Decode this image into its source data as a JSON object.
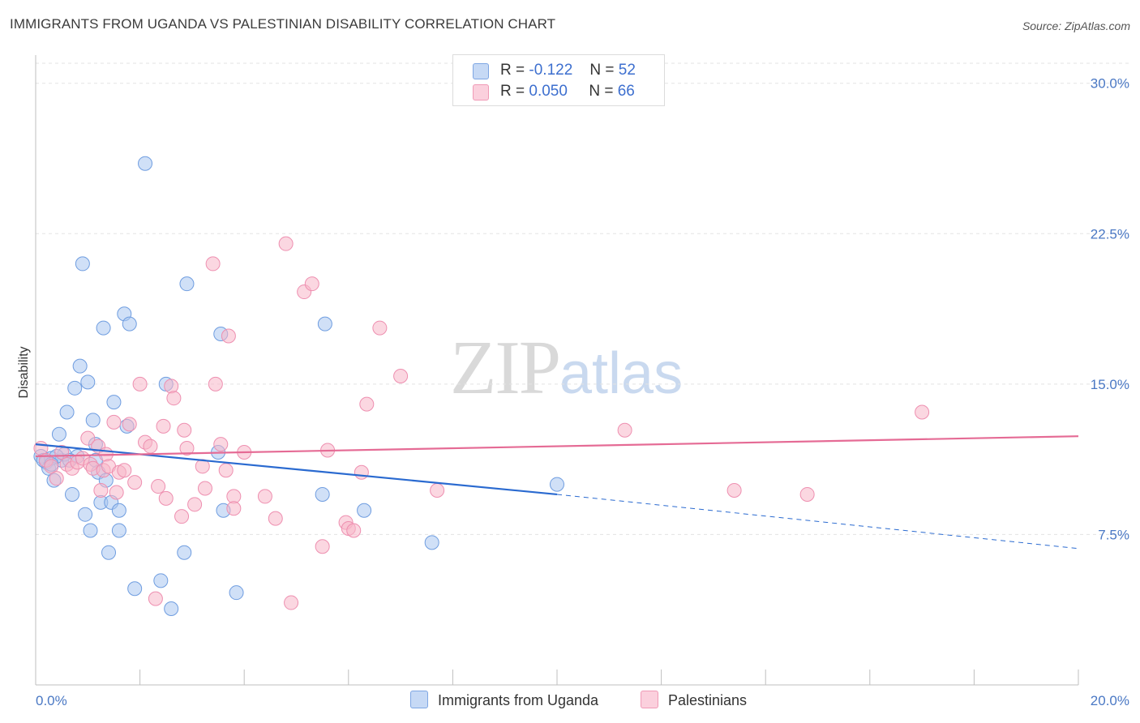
{
  "title": "IMMIGRANTS FROM UGANDA VS PALESTINIAN DISABILITY CORRELATION CHART",
  "source": "Source: ZipAtlas.com",
  "watermark": {
    "zip": "ZIP",
    "atlas": "atlas"
  },
  "legend": {
    "r_label": "R =",
    "n_label": "N =",
    "series": [
      {
        "r": "-0.122",
        "n": "52",
        "color": "#a9c6f0"
      },
      {
        "r": "0.050",
        "n": "66",
        "color": "#f7b6c9"
      }
    ]
  },
  "bottom_legend": [
    {
      "label": "Immigrants from Uganda",
      "color": "#a9c6f0"
    },
    {
      "label": "Palestinians",
      "color": "#f7b6c9"
    }
  ],
  "chart_data": {
    "type": "scatter",
    "title": "IMMIGRANTS FROM UGANDA VS PALESTINIAN DISABILITY CORRELATION CHART",
    "xlabel": "",
    "ylabel": "Disability",
    "xlim": [
      0,
      20
    ],
    "ylim": [
      0,
      31
    ],
    "x_tick_labels": [
      "0.0%",
      "20.0%"
    ],
    "y_ticks": [
      7.5,
      15.0,
      22.5,
      30.0
    ],
    "y_tick_labels": [
      "7.5%",
      "15.0%",
      "22.5%",
      "30.0%"
    ],
    "grid": true,
    "legend_position": "top-center",
    "series": [
      {
        "name": "Immigrants from Uganda",
        "color": "#6f9de0",
        "fill": "#a9c6f0",
        "trend": {
          "x0": 0,
          "y0": 12.0,
          "x1": 10.0,
          "y1": 9.5,
          "dash_x1": 20,
          "dash_y1": 6.8,
          "color": "#2a6ad0"
        },
        "points": [
          [
            0.1,
            11.4
          ],
          [
            0.2,
            11.1
          ],
          [
            0.25,
            10.8
          ],
          [
            0.3,
            11.3
          ],
          [
            0.35,
            10.2
          ],
          [
            0.45,
            12.5
          ],
          [
            0.5,
            11.2
          ],
          [
            0.55,
            11.5
          ],
          [
            0.6,
            13.6
          ],
          [
            0.7,
            9.5
          ],
          [
            0.75,
            14.8
          ],
          [
            0.8,
            11.4
          ],
          [
            0.85,
            15.9
          ],
          [
            0.9,
            21.0
          ],
          [
            0.95,
            8.5
          ],
          [
            1.0,
            15.1
          ],
          [
            1.05,
            7.7
          ],
          [
            1.1,
            13.2
          ],
          [
            1.15,
            11.2
          ],
          [
            1.2,
            10.6
          ],
          [
            1.25,
            9.1
          ],
          [
            1.3,
            17.8
          ],
          [
            1.35,
            10.2
          ],
          [
            1.4,
            6.6
          ],
          [
            1.45,
            9.1
          ],
          [
            1.5,
            14.1
          ],
          [
            1.6,
            7.7
          ],
          [
            1.6,
            8.7
          ],
          [
            1.7,
            18.5
          ],
          [
            1.75,
            12.9
          ],
          [
            1.8,
            18.0
          ],
          [
            1.9,
            4.8
          ],
          [
            2.1,
            26.0
          ],
          [
            2.4,
            5.2
          ],
          [
            2.5,
            15.0
          ],
          [
            2.6,
            3.8
          ],
          [
            2.85,
            6.6
          ],
          [
            2.9,
            20.0
          ],
          [
            3.5,
            11.6
          ],
          [
            3.55,
            17.5
          ],
          [
            3.6,
            8.7
          ],
          [
            3.85,
            4.6
          ],
          [
            5.5,
            9.5
          ],
          [
            5.55,
            18.0
          ],
          [
            6.3,
            8.7
          ],
          [
            7.6,
            7.1
          ],
          [
            10.0,
            10.0
          ],
          [
            0.15,
            11.2
          ],
          [
            0.4,
            11.4
          ],
          [
            0.65,
            11.2
          ],
          [
            1.15,
            12.0
          ],
          [
            0.3,
            11.0
          ]
        ]
      },
      {
        "name": "Palestinians",
        "color": "#ee8fb0",
        "fill": "#f7b6c9",
        "trend": {
          "x0": 0,
          "y0": 11.4,
          "x1": 20,
          "y1": 12.4,
          "color": "#e56b95"
        },
        "points": [
          [
            0.1,
            11.8
          ],
          [
            0.2,
            11.2
          ],
          [
            0.3,
            10.9
          ],
          [
            0.4,
            10.3
          ],
          [
            0.5,
            11.6
          ],
          [
            0.6,
            11.0
          ],
          [
            0.7,
            10.8
          ],
          [
            0.8,
            11.1
          ],
          [
            0.9,
            11.3
          ],
          [
            1.0,
            12.3
          ],
          [
            1.05,
            11.0
          ],
          [
            1.1,
            10.8
          ],
          [
            1.2,
            11.9
          ],
          [
            1.25,
            9.7
          ],
          [
            1.3,
            10.7
          ],
          [
            1.35,
            11.5
          ],
          [
            1.4,
            10.9
          ],
          [
            1.5,
            13.1
          ],
          [
            1.55,
            9.6
          ],
          [
            1.6,
            10.6
          ],
          [
            1.7,
            10.7
          ],
          [
            1.8,
            13.0
          ],
          [
            1.9,
            10.1
          ],
          [
            2.0,
            15.0
          ],
          [
            2.1,
            12.1
          ],
          [
            2.2,
            11.9
          ],
          [
            2.3,
            4.3
          ],
          [
            2.35,
            9.9
          ],
          [
            2.45,
            12.9
          ],
          [
            2.5,
            9.3
          ],
          [
            2.6,
            14.9
          ],
          [
            2.65,
            14.3
          ],
          [
            2.8,
            8.4
          ],
          [
            2.85,
            12.7
          ],
          [
            2.9,
            11.8
          ],
          [
            3.05,
            9.0
          ],
          [
            3.2,
            10.9
          ],
          [
            3.25,
            9.8
          ],
          [
            3.4,
            21.0
          ],
          [
            3.45,
            15.0
          ],
          [
            3.55,
            12.0
          ],
          [
            3.65,
            10.7
          ],
          [
            3.7,
            17.4
          ],
          [
            3.8,
            9.4
          ],
          [
            3.8,
            8.8
          ],
          [
            4.0,
            11.6
          ],
          [
            4.4,
            9.4
          ],
          [
            4.6,
            8.3
          ],
          [
            4.8,
            22.0
          ],
          [
            4.9,
            4.1
          ],
          [
            5.15,
            19.6
          ],
          [
            5.3,
            20.0
          ],
          [
            5.5,
            6.9
          ],
          [
            5.6,
            11.7
          ],
          [
            5.95,
            8.1
          ],
          [
            6.0,
            7.8
          ],
          [
            6.1,
            7.7
          ],
          [
            6.25,
            10.6
          ],
          [
            6.35,
            14.0
          ],
          [
            6.6,
            17.8
          ],
          [
            7.0,
            15.4
          ],
          [
            7.7,
            9.7
          ],
          [
            11.3,
            12.7
          ],
          [
            13.4,
            9.7
          ],
          [
            14.8,
            9.5
          ],
          [
            17.0,
            13.6
          ]
        ]
      }
    ]
  }
}
